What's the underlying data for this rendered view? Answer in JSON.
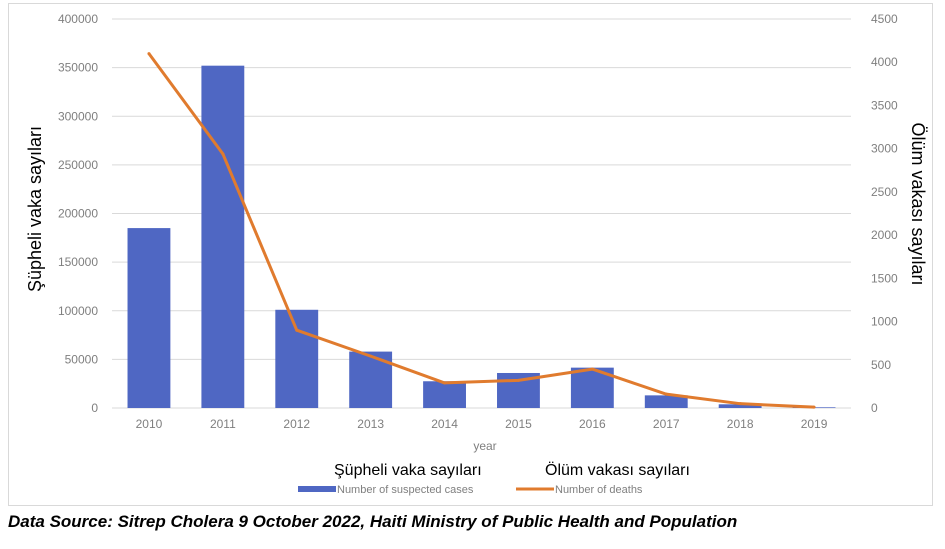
{
  "chart_data": {
    "type": "bar",
    "xlabel": "year",
    "ylabel_left": "Şüpheli vaka sayıları",
    "ylabel_right": "Ölüm vakası sayıları",
    "categories": [
      "2010",
      "2011",
      "2012",
      "2013",
      "2014",
      "2015",
      "2016",
      "2017",
      "2018",
      "2019"
    ],
    "series": [
      {
        "name": "Number of suspected cases",
        "legend_title": "Şüpheli vaka sayıları",
        "type": "bar",
        "axis": "left",
        "color": "#4f67c3",
        "values": [
          185000,
          352000,
          101000,
          58000,
          27500,
          36000,
          41500,
          13000,
          3800,
          700
        ]
      },
      {
        "name": "Number of deaths",
        "legend_title": "Ölüm vakası sayıları",
        "type": "line",
        "axis": "right",
        "color": "#e07b2e",
        "values": [
          4100,
          2940,
          900,
          600,
          290,
          320,
          450,
          160,
          50,
          10
        ]
      }
    ],
    "ylim_left": [
      0,
      400000
    ],
    "yticks_left": [
      "0",
      "50000",
      "100000",
      "150000",
      "200000",
      "250000",
      "300000",
      "350000",
      "400000"
    ],
    "ylim_right": [
      0,
      4500
    ],
    "yticks_right": [
      "0",
      "500",
      "1000",
      "1500",
      "2000",
      "2500",
      "3000",
      "3500",
      "4000",
      "4500"
    ],
    "grid": true,
    "legend_position": "bottom"
  },
  "caption": "Data Source: Sitrep Cholera 9 October 2022, Haiti Ministry of Public Health and Population"
}
